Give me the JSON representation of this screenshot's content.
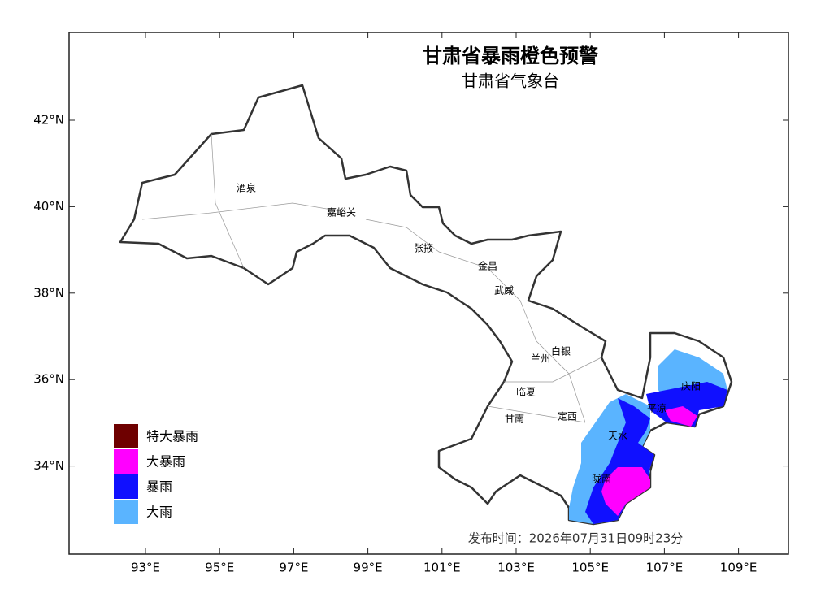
{
  "header": {
    "title": "甘肃省暴雨橙色预警",
    "subtitle": "甘肃省气象台"
  },
  "axes": {
    "xticks": [
      {
        "value": 93,
        "label": "93°E"
      },
      {
        "value": 95,
        "label": "95°E"
      },
      {
        "value": 97,
        "label": "97°E"
      },
      {
        "value": 99,
        "label": "99°E"
      },
      {
        "value": 101,
        "label": "101°E"
      },
      {
        "value": 103,
        "label": "103°E"
      },
      {
        "value": 105,
        "label": "105°E"
      },
      {
        "value": 107,
        "label": "107°E"
      },
      {
        "value": 109,
        "label": "109°E"
      }
    ],
    "yticks": [
      {
        "value": 42,
        "label": "42°N"
      },
      {
        "value": 40,
        "label": "40°N"
      },
      {
        "value": 38,
        "label": "38°N"
      },
      {
        "value": 36,
        "label": "36°N"
      },
      {
        "value": 34,
        "label": "34°N"
      }
    ]
  },
  "cities": [
    "酒泉",
    "嘉峪关",
    "张掖",
    "金昌",
    "武威",
    "白银",
    "兰州",
    "临夏",
    "甘南",
    "定西",
    "天水",
    "陇南",
    "庆阳",
    "平凉"
  ],
  "legend": [
    {
      "label": "特大暴雨",
      "color": "#6e0000"
    },
    {
      "label": "大暴雨",
      "color": "#ff00ff"
    },
    {
      "label": "暴雨",
      "color": "#1010ff"
    },
    {
      "label": "大雨",
      "color": "#5ab4ff"
    }
  ],
  "footer": {
    "issued": "发布时间：2026年07月31日09时23分"
  }
}
